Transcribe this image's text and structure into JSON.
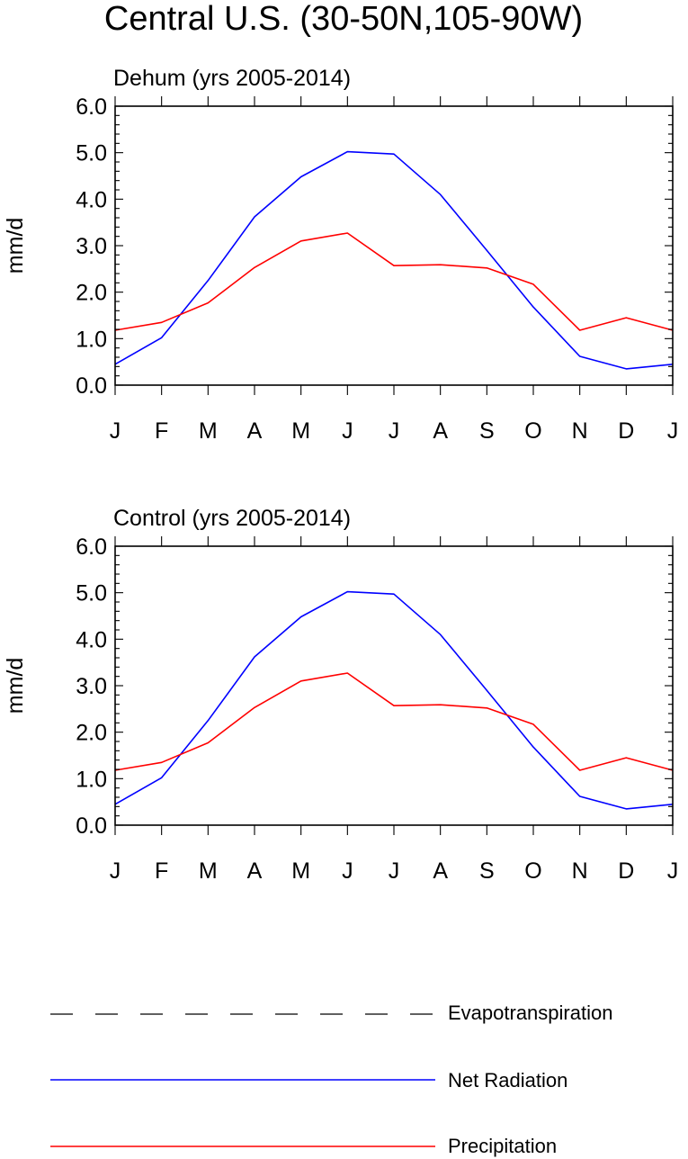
{
  "main_title": "Central U.S. (30-50N,105-90W)",
  "legend": [
    {
      "label": "Evapotranspiration",
      "color": "#000000",
      "dash": "dashed"
    },
    {
      "label": "Net Radiation",
      "color": "#0000ff",
      "dash": "solid"
    },
    {
      "label": "Precipitation",
      "color": "#ff0000",
      "dash": "solid"
    }
  ],
  "chart_data": [
    {
      "type": "line",
      "title": "Dehum (yrs 2005-2014)",
      "xlabel": "",
      "ylabel": "mm/d",
      "categories": [
        "J",
        "F",
        "M",
        "A",
        "M",
        "J",
        "J",
        "A",
        "S",
        "O",
        "N",
        "D",
        "J"
      ],
      "ylim": [
        0,
        6
      ],
      "yticks": [
        "0.0",
        "1.0",
        "2.0",
        "3.0",
        "4.0",
        "5.0",
        "6.0"
      ],
      "series": [
        {
          "name": "Net Radiation",
          "color": "#0000ff",
          "values": [
            0.45,
            1.02,
            2.25,
            3.62,
            4.48,
            5.02,
            4.97,
            4.1,
            2.9,
            1.68,
            0.62,
            0.35,
            0.45
          ]
        },
        {
          "name": "Precipitation",
          "color": "#ff0000",
          "values": [
            1.18,
            1.35,
            1.77,
            2.53,
            3.1,
            3.27,
            2.57,
            2.59,
            2.52,
            2.17,
            1.18,
            1.45,
            1.18
          ]
        }
      ]
    },
    {
      "type": "line",
      "title": "Control (yrs 2005-2014)",
      "xlabel": "",
      "ylabel": "mm/d",
      "categories": [
        "J",
        "F",
        "M",
        "A",
        "M",
        "J",
        "J",
        "A",
        "S",
        "O",
        "N",
        "D",
        "J"
      ],
      "ylim": [
        0,
        6
      ],
      "yticks": [
        "0.0",
        "1.0",
        "2.0",
        "3.0",
        "4.0",
        "5.0",
        "6.0"
      ],
      "series": [
        {
          "name": "Net Radiation",
          "color": "#0000ff",
          "values": [
            0.45,
            1.02,
            2.25,
            3.62,
            4.48,
            5.02,
            4.97,
            4.1,
            2.9,
            1.68,
            0.62,
            0.35,
            0.45
          ]
        },
        {
          "name": "Precipitation",
          "color": "#ff0000",
          "values": [
            1.18,
            1.35,
            1.77,
            2.53,
            3.1,
            3.27,
            2.57,
            2.59,
            2.52,
            2.17,
            1.18,
            1.45,
            1.18
          ]
        }
      ]
    }
  ]
}
